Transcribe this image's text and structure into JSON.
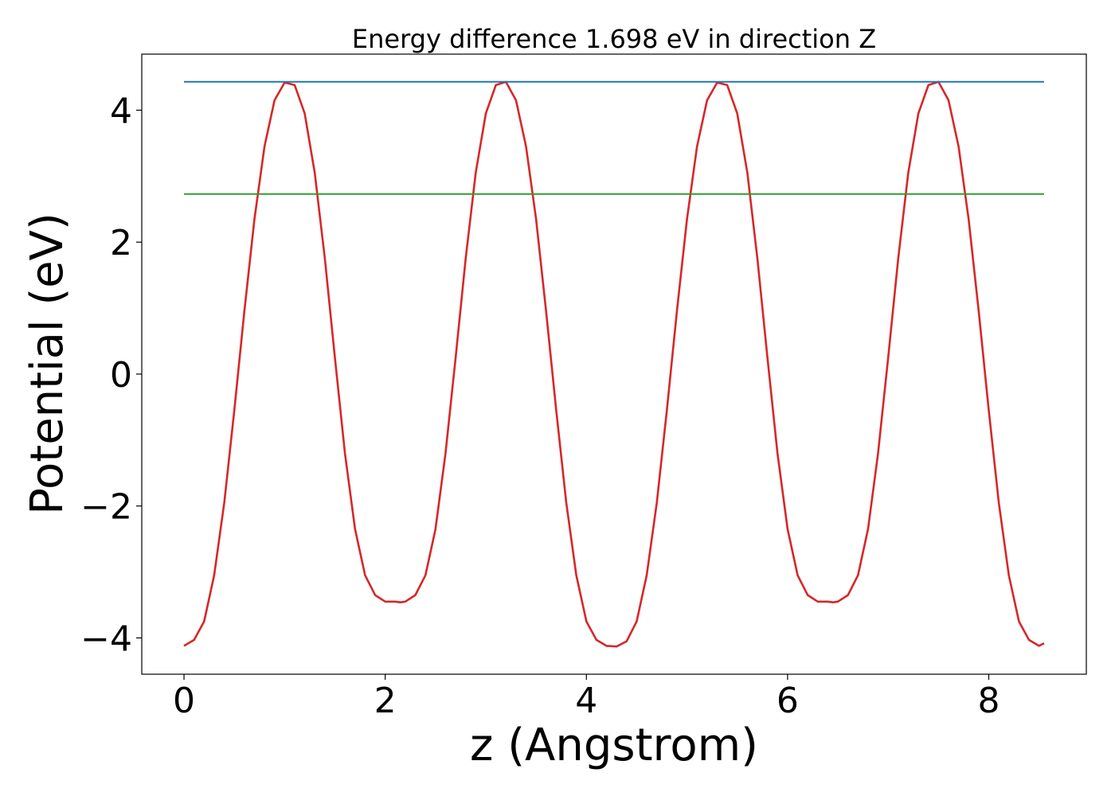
{
  "chart_data": {
    "type": "line",
    "title": "Energy difference 1.698 eV in direction Z",
    "xlabel": "z (Angstrom)",
    "ylabel": "Potential (eV)",
    "xlim": [
      -0.42,
      8.97
    ],
    "ylim": [
      -4.55,
      4.85
    ],
    "xticks": [
      {
        "value": 0,
        "label": "0"
      },
      {
        "value": 2,
        "label": "2"
      },
      {
        "value": 4,
        "label": "4"
      },
      {
        "value": 6,
        "label": "6"
      },
      {
        "value": 8,
        "label": "8"
      }
    ],
    "yticks": [
      {
        "value": -4,
        "label": "−4"
      },
      {
        "value": -2,
        "label": "−2"
      },
      {
        "value": 0,
        "label": "0"
      },
      {
        "value": 2,
        "label": "2"
      },
      {
        "value": 4,
        "label": "4"
      }
    ],
    "grid": false,
    "series": [
      {
        "kind": "curve",
        "color": "#d62728",
        "x": [
          0.0,
          0.1,
          0.2,
          0.3,
          0.4,
          0.5,
          0.6,
          0.7,
          0.8,
          0.9,
          1.0,
          1.1,
          1.2,
          1.3,
          1.4,
          1.5,
          1.6,
          1.7,
          1.8,
          1.9,
          2.0,
          2.1,
          2.15,
          2.2,
          2.3,
          2.4,
          2.5,
          2.6,
          2.7,
          2.8,
          2.9,
          3.0,
          3.1,
          3.2,
          3.3,
          3.4,
          3.5,
          3.6,
          3.7,
          3.8,
          3.9,
          4.0,
          4.1,
          4.2,
          4.3,
          4.4,
          4.5,
          4.6,
          4.7,
          4.8,
          4.9,
          5.0,
          5.1,
          5.2,
          5.3,
          5.4,
          5.5,
          5.6,
          5.7,
          5.8,
          5.9,
          6.0,
          6.1,
          6.2,
          6.3,
          6.4,
          6.45,
          6.5,
          6.6,
          6.7,
          6.8,
          6.9,
          7.0,
          7.1,
          7.2,
          7.3,
          7.4,
          7.5,
          7.6,
          7.7,
          7.8,
          7.9,
          8.0,
          8.1,
          8.2,
          8.3,
          8.4,
          8.5,
          8.55
        ],
        "y": [
          -4.12,
          -4.03,
          -3.75,
          -3.05,
          -1.95,
          -0.55,
          0.95,
          2.35,
          3.45,
          4.15,
          4.42,
          4.38,
          3.95,
          3.05,
          1.75,
          0.25,
          -1.2,
          -2.35,
          -3.05,
          -3.35,
          -3.45,
          -3.45,
          -3.46,
          -3.45,
          -3.35,
          -3.05,
          -2.35,
          -1.2,
          0.25,
          1.75,
          3.05,
          3.95,
          4.38,
          4.43,
          4.15,
          3.45,
          2.35,
          0.95,
          -0.55,
          -1.95,
          -3.05,
          -3.75,
          -4.03,
          -4.12,
          -4.13,
          -4.05,
          -3.75,
          -3.05,
          -1.95,
          -0.55,
          0.95,
          2.35,
          3.45,
          4.15,
          4.42,
          4.38,
          3.95,
          3.05,
          1.75,
          0.25,
          -1.2,
          -2.35,
          -3.05,
          -3.35,
          -3.45,
          -3.45,
          -3.46,
          -3.45,
          -3.35,
          -3.05,
          -2.35,
          -1.2,
          0.25,
          1.75,
          3.05,
          3.95,
          4.38,
          4.43,
          4.15,
          3.45,
          2.35,
          0.95,
          -0.55,
          -1.95,
          -3.05,
          -3.75,
          -4.03,
          -4.12,
          -4.08
        ]
      },
      {
        "kind": "hline",
        "color": "#1f77b4",
        "y": 4.43,
        "x_range": [
          0.0,
          8.55
        ]
      },
      {
        "kind": "hline",
        "color": "#2ca02c",
        "y": 2.73,
        "x_range": [
          0.0,
          8.55
        ]
      }
    ]
  }
}
